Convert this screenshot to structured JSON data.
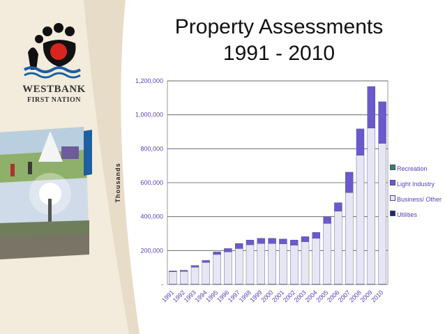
{
  "logo": {
    "name_line1": "WESTBANK",
    "name_line2": "FIRST NATION"
  },
  "chart_data": {
    "type": "bar",
    "stacked": true,
    "title_line1": "Property Assessments",
    "title_line2": "1991 - 2010",
    "ylabel": "Thousands",
    "xlabel": "",
    "ylim": [
      0,
      1200000
    ],
    "y_ticks": [
      0,
      200000,
      400000,
      600000,
      800000,
      1000000,
      1200000
    ],
    "y_tick_labels": [
      "-",
      "200,000",
      "400,000",
      "600,000",
      "800,000",
      "1,000,000",
      "1,200,000"
    ],
    "grid": true,
    "legend_position": "right",
    "categories": [
      "1991",
      "1992",
      "1993",
      "1994",
      "1995",
      "1996",
      "1997",
      "1998",
      "1999",
      "2000",
      "2001",
      "2002",
      "2003",
      "2004",
      "2005",
      "2006",
      "2007",
      "2008",
      "2009",
      "2010"
    ],
    "series": [
      {
        "name": "Utilities",
        "color": "#1f2a5e",
        "values": [
          2000,
          2000,
          2000,
          2000,
          2000,
          2000,
          2000,
          2000,
          2000,
          2000,
          2000,
          2000,
          2000,
          2000,
          2000,
          2000,
          2000,
          2000,
          2000,
          2000
        ]
      },
      {
        "name": "Business/ Other",
        "color": "#e6e6f5",
        "values": [
          73000,
          75000,
          100000,
          128000,
          175000,
          190000,
          210000,
          232000,
          240000,
          240000,
          238000,
          230000,
          250000,
          270000,
          358000,
          430000,
          540000,
          760000,
          920000,
          830000
        ]
      },
      {
        "name": "Light Industry",
        "color": "#6a5acd",
        "values": [
          5000,
          7000,
          10000,
          12000,
          15000,
          20000,
          30000,
          28000,
          30000,
          30000,
          28000,
          30000,
          30000,
          35000,
          40000,
          50000,
          120000,
          155000,
          245000,
          245000
        ]
      },
      {
        "name": "Recreation",
        "color": "#2e8b57",
        "values": [
          0,
          0,
          0,
          0,
          0,
          0,
          0,
          0,
          0,
          0,
          0,
          0,
          0,
          0,
          0,
          0,
          0,
          0,
          0,
          0
        ]
      }
    ]
  }
}
